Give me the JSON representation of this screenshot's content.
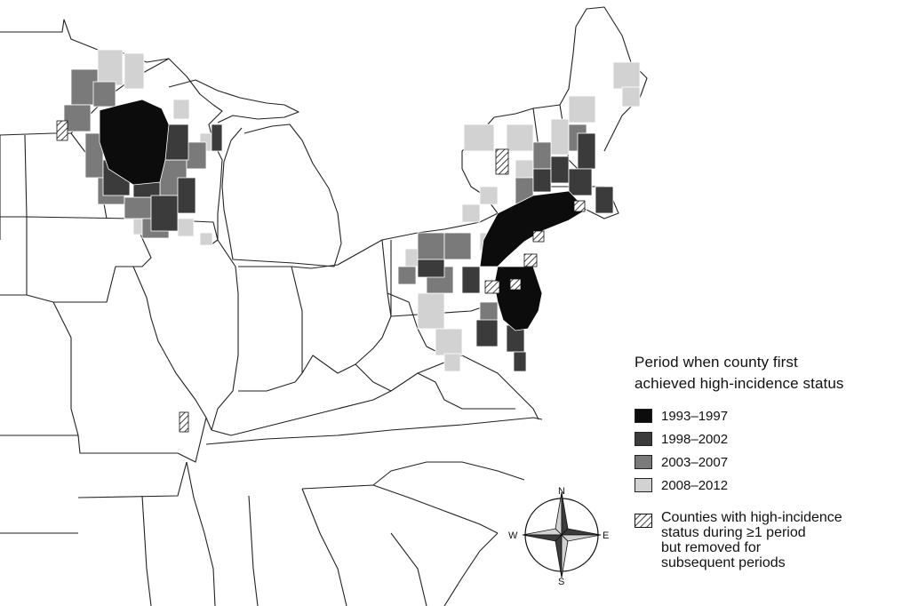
{
  "colors": {
    "period_1993_1997": "#0c0c0c",
    "period_1998_2002": "#3b3b3b",
    "period_2003_2007": "#7a7a7a",
    "period_2008_2012": "#d2d2d2",
    "state_border": "#222222",
    "background": "#ffffff"
  },
  "legend": {
    "title_line1": "Period when county first",
    "title_line2": "achieved high-incidence status",
    "items": [
      {
        "label": "1993–1997",
        "period": "period_1993_1997"
      },
      {
        "label": "1998–2002",
        "period": "period_1998_2002"
      },
      {
        "label": "2003–2007",
        "period": "period_2003_2007"
      },
      {
        "label": "2008–2012",
        "period": "period_2008_2012"
      }
    ],
    "removed_note": {
      "line1": "Counties with high-incidence",
      "line2": "status during ≥1 period",
      "line3": "but removed for",
      "line4": "subsequent periods"
    }
  },
  "compass": {
    "north": "N",
    "south": "S",
    "east": "E",
    "west": "W"
  },
  "map": {
    "regions": "northeastern and north-central United States",
    "high_incidence_clusters": [
      "upper Midwest (Wisconsin/Minnesota)",
      "Northeast (New England to Virginia)"
    ]
  }
}
